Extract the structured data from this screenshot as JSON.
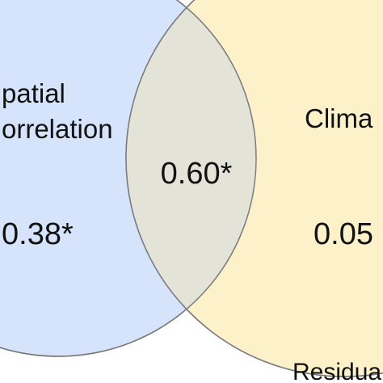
{
  "sets": [
    {
      "label_lines": [
        "patial",
        "orrelation"
      ],
      "value": "0.38*",
      "color": "#d6e4fb"
    },
    {
      "label_lines": [
        "Clima"
      ],
      "value": "0.05",
      "color": "#fcf1c9"
    }
  ],
  "overlap": {
    "value": "0.60*",
    "color": "#e3e4d7"
  },
  "residual_label": "Residua",
  "colors": {
    "outline": "#7a7a7a",
    "text": "#111111",
    "background": "#ffffff"
  }
}
